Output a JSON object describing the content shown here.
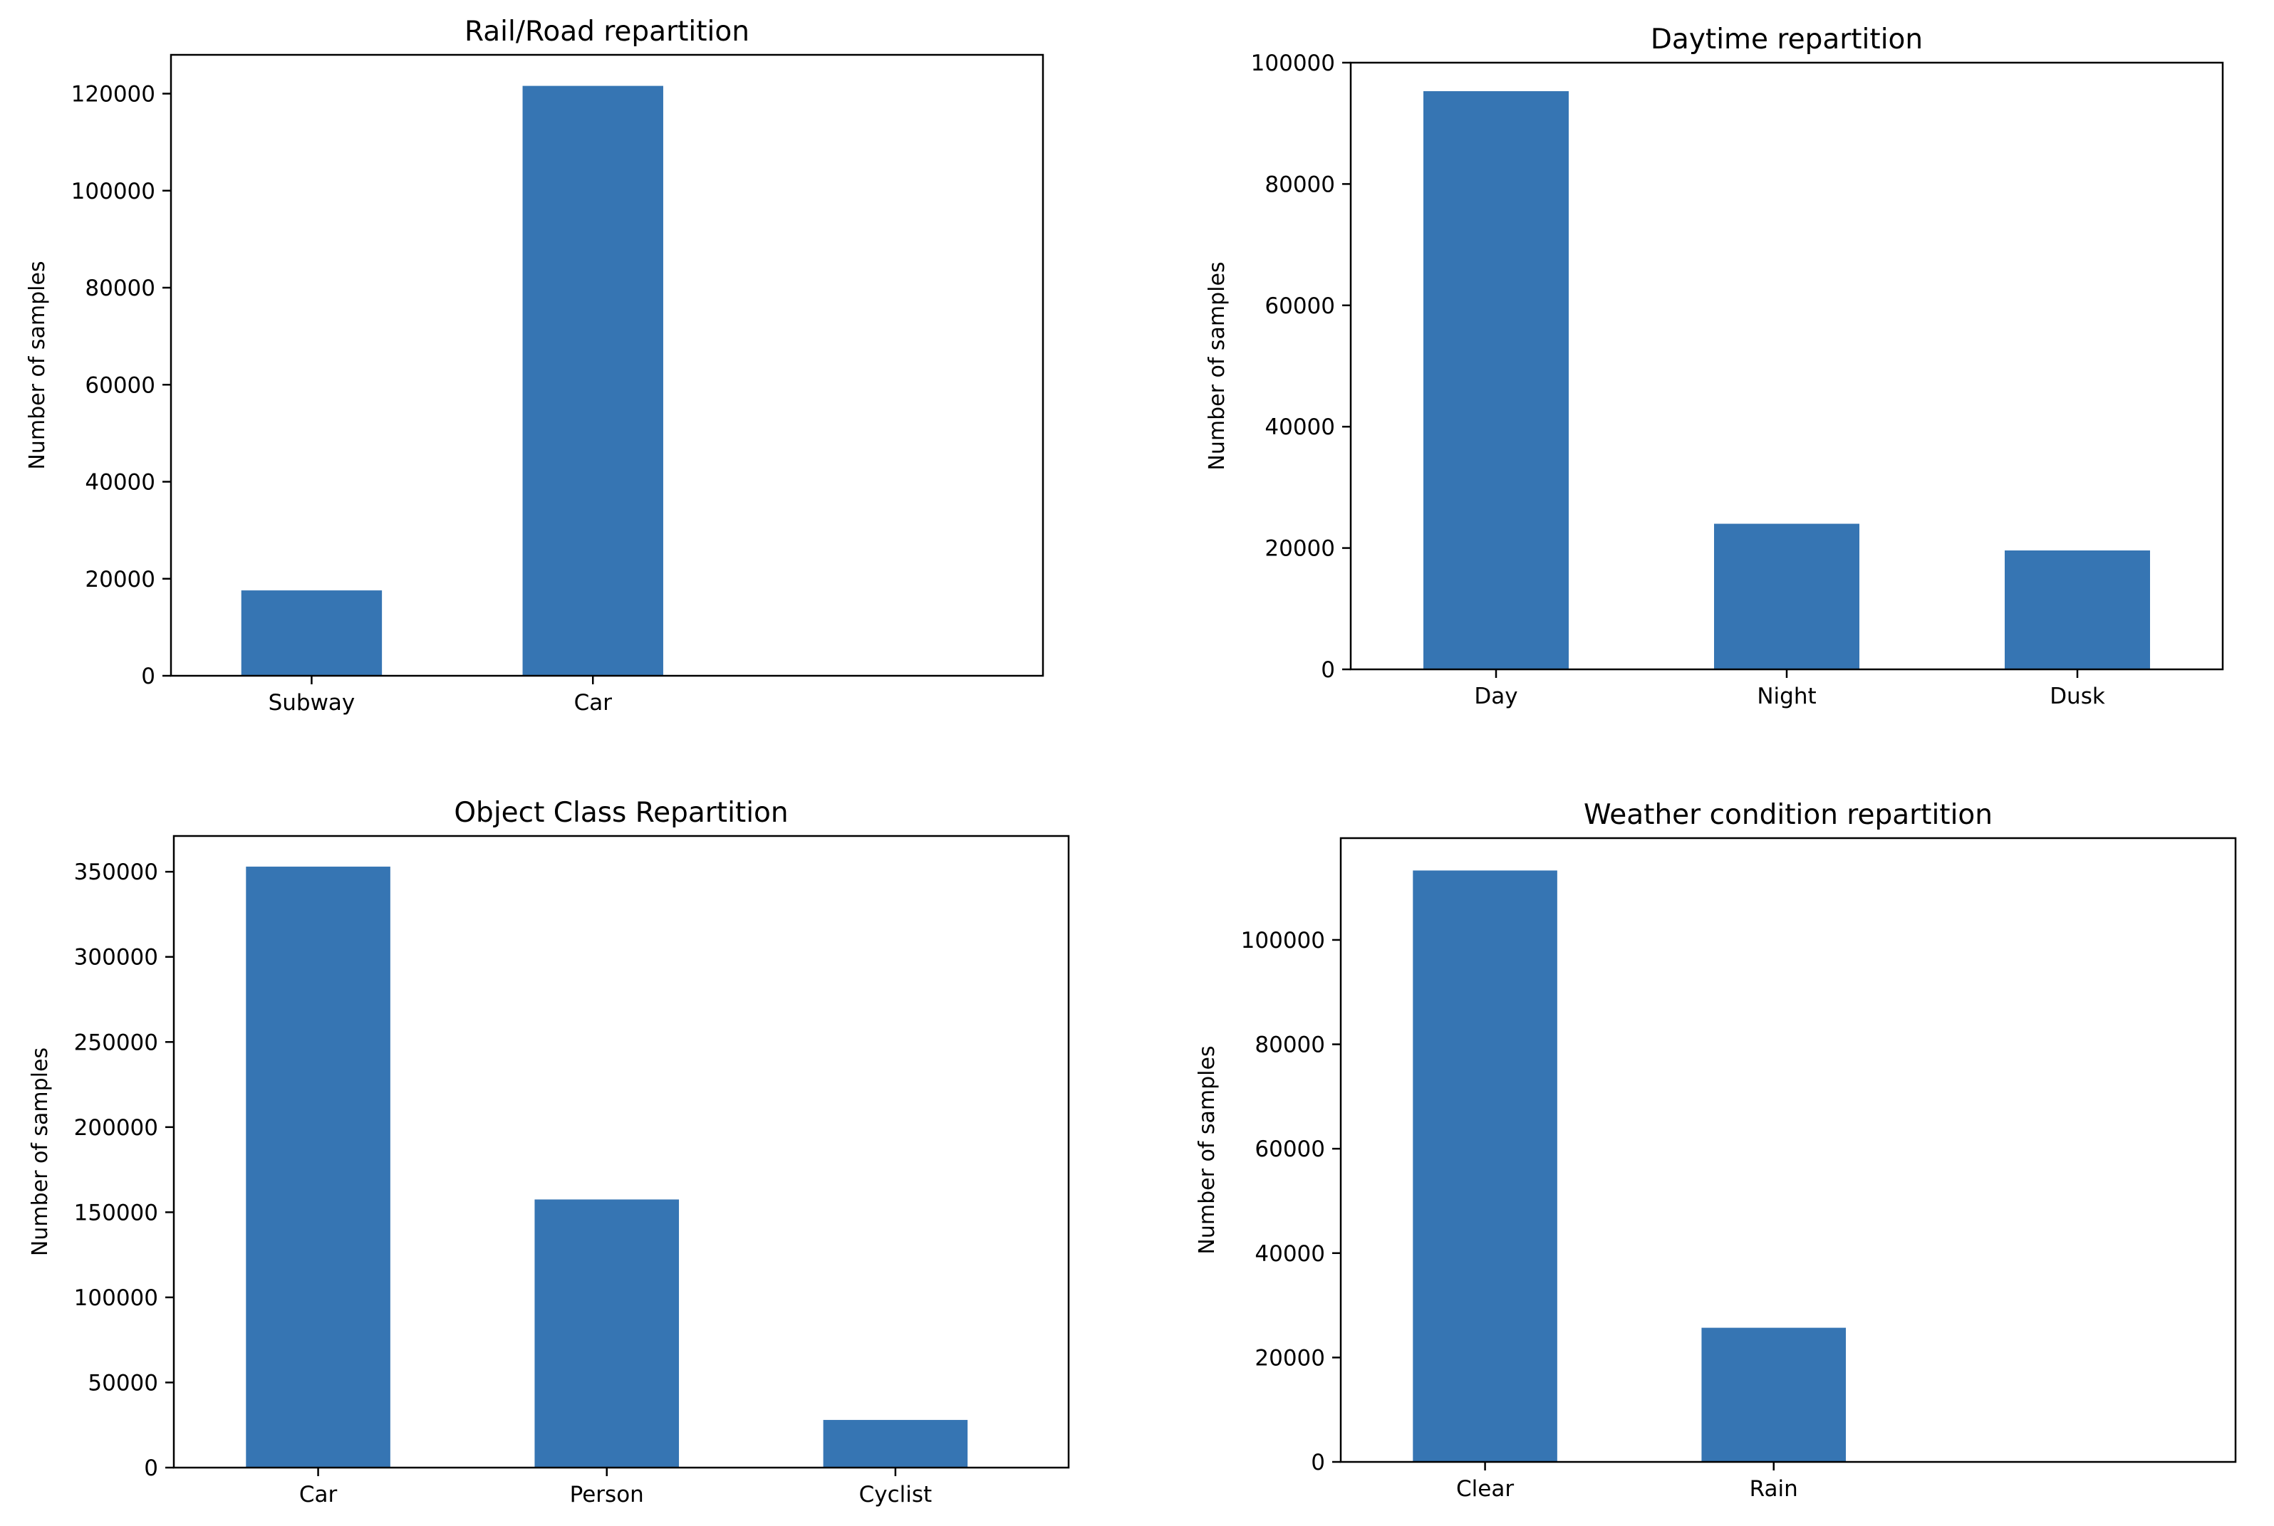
{
  "colors": {
    "bar": "#3675b3",
    "axis": "#000000"
  },
  "chart_data": [
    {
      "type": "bar",
      "title": "Rail/Road repartition",
      "xlabel": "",
      "ylabel": "Number of samples",
      "categories": [
        "Subway",
        "Car"
      ],
      "values": [
        17600,
        121600
      ],
      "ylim": [
        0,
        128000
      ],
      "yticks": [
        0,
        20000,
        40000,
        60000,
        80000,
        100000,
        120000
      ],
      "xlim": [
        -0.5,
        2.6
      ],
      "grid": false
    },
    {
      "type": "bar",
      "title": "Daytime repartition",
      "xlabel": "",
      "ylabel": "Number of samples",
      "categories": [
        "Day",
        "Night",
        "Dusk"
      ],
      "values": [
        95300,
        24000,
        19600
      ],
      "ylim": [
        0,
        100000
      ],
      "yticks": [
        0,
        20000,
        40000,
        60000,
        80000,
        100000
      ],
      "xlim": [
        -0.5,
        2.5
      ],
      "grid": false
    },
    {
      "type": "bar",
      "title": "Object Class Repartition",
      "xlabel": "",
      "ylabel": "Number of samples",
      "categories": [
        "Car",
        "Person",
        "Cyclist"
      ],
      "values": [
        353000,
        157500,
        28000
      ],
      "ylim": [
        0,
        371000
      ],
      "yticks": [
        0,
        50000,
        100000,
        150000,
        200000,
        250000,
        300000,
        350000
      ],
      "xlim": [
        -0.5,
        2.6
      ],
      "grid": false
    },
    {
      "type": "bar",
      "title": "Weather condition repartition",
      "xlabel": "",
      "ylabel": "Number of samples",
      "categories": [
        "Clear",
        "Rain"
      ],
      "values": [
        113300,
        25700
      ],
      "ylim": [
        0,
        119500
      ],
      "yticks": [
        0,
        20000,
        40000,
        60000,
        80000,
        100000
      ],
      "xlim": [
        -0.5,
        2.6
      ],
      "grid": false
    }
  ]
}
